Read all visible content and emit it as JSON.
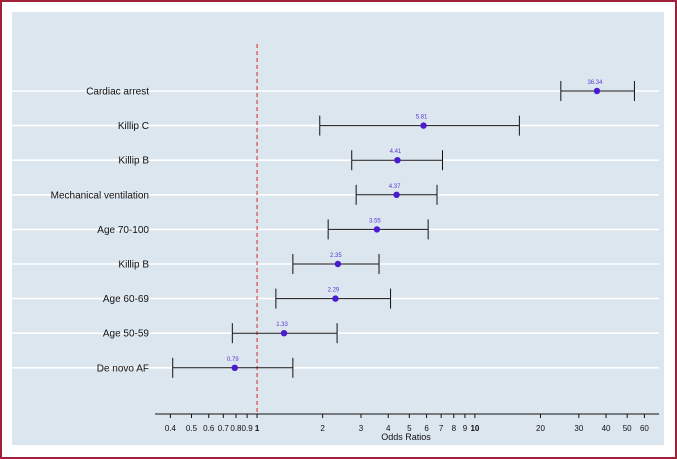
{
  "chart_data": {
    "type": "forest",
    "title": "",
    "xlabel": "Odds Ratios",
    "xscale": "log",
    "xlim": [
      0.34,
      70
    ],
    "reference_line": 1,
    "grid": "horizontal",
    "colors": {
      "frame": "#a0213a",
      "plot_background": "#dce6ef",
      "point": "#4a1bd0",
      "reference": "#d62828",
      "interval": "#111111"
    },
    "rows": [
      {
        "label": "Cardiac arrest",
        "or": 36.34,
        "lower": 24.8,
        "upper": 54.0,
        "or_label": "36.34"
      },
      {
        "label": "Killip C",
        "or": 5.81,
        "lower": 1.94,
        "upper": 16.0,
        "or_label": "5.81"
      },
      {
        "label": "Killip B",
        "or": 4.41,
        "lower": 2.72,
        "upper": 7.1,
        "or_label": "4.41"
      },
      {
        "label": "Mechanical ventilation",
        "or": 4.37,
        "lower": 2.85,
        "upper": 6.7,
        "or_label": "4.37"
      },
      {
        "label": "Age 70-100",
        "or": 3.55,
        "lower": 2.12,
        "upper": 6.1,
        "or_label": "3.55"
      },
      {
        "label": "Killip B",
        "or": 2.35,
        "lower": 1.46,
        "upper": 3.63,
        "or_label": "2.35"
      },
      {
        "label": "Age 60-69",
        "or": 2.29,
        "lower": 1.22,
        "upper": 4.1,
        "or_label": "2.29"
      },
      {
        "label": "Age 50-59",
        "or": 1.33,
        "lower": 0.77,
        "upper": 2.33,
        "or_label": "1.33"
      },
      {
        "label": "De novo AF",
        "or": 0.79,
        "lower": 0.41,
        "upper": 1.46,
        "or_label": "0.79"
      }
    ],
    "x_ticks": [
      {
        "value": 0.4,
        "label": "0.4",
        "bold": false
      },
      {
        "value": 0.5,
        "label": "0.5",
        "bold": false
      },
      {
        "value": 0.6,
        "label": "0.6",
        "bold": false
      },
      {
        "value": 0.7,
        "label": "0.7",
        "bold": false
      },
      {
        "value": 0.8,
        "label": "0.8",
        "bold": false
      },
      {
        "value": 0.9,
        "label": "0.9",
        "bold": false
      },
      {
        "value": 1,
        "label": "1",
        "bold": true
      },
      {
        "value": 2,
        "label": "2",
        "bold": false
      },
      {
        "value": 3,
        "label": "3",
        "bold": false
      },
      {
        "value": 4,
        "label": "4",
        "bold": false
      },
      {
        "value": 5,
        "label": "5",
        "bold": false
      },
      {
        "value": 6,
        "label": "6",
        "bold": false
      },
      {
        "value": 7,
        "label": "7",
        "bold": false
      },
      {
        "value": 8,
        "label": "8",
        "bold": false
      },
      {
        "value": 9,
        "label": "9",
        "bold": false
      },
      {
        "value": 10,
        "label": "10",
        "bold": true
      },
      {
        "value": 20,
        "label": "20",
        "bold": false
      },
      {
        "value": 30,
        "label": "30",
        "bold": false
      },
      {
        "value": 40,
        "label": "40",
        "bold": false
      },
      {
        "value": 50,
        "label": "50",
        "bold": false
      },
      {
        "value": 60,
        "label": "60",
        "bold": false
      }
    ]
  }
}
